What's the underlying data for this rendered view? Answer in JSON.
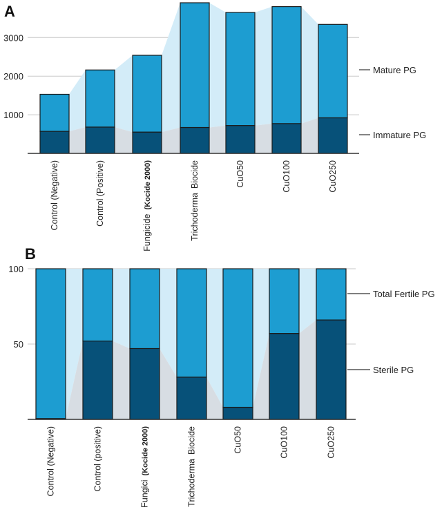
{
  "colors": {
    "top_segment": "#1d9dd1",
    "bottom_segment": "#075179",
    "ribbon_top": "#d3ecf8",
    "ribbon_bottom": "#d7dde3",
    "grid": "#c8c8c8",
    "axis": "#333333"
  },
  "chart_data": [
    {
      "panel": "A",
      "type": "bar",
      "stacked": true,
      "categories": [
        [
          "Control (Negative)"
        ],
        [
          "Control (Positive)"
        ],
        [
          "Fungicide",
          "(Kocide 2000)"
        ],
        [
          "Trichoderma",
          "Biocide"
        ],
        [
          "CuO50"
        ],
        [
          "CuO100"
        ],
        [
          "CuO250"
        ]
      ],
      "series": [
        {
          "name": "Immature PG",
          "values": [
            570,
            680,
            550,
            670,
            720,
            770,
            920
          ]
        },
        {
          "name": "Mature PG",
          "values": [
            960,
            1480,
            1990,
            3230,
            2930,
            3030,
            2420
          ]
        }
      ],
      "totals": [
        1530,
        2160,
        2540,
        3900,
        3650,
        3800,
        3340
      ],
      "ylim": [
        0,
        3900
      ],
      "yticks": [
        "1000",
        "2000",
        "3000"
      ],
      "legend": [
        "Mature PG",
        "Immature PG"
      ]
    },
    {
      "panel": "B",
      "type": "bar",
      "stacked": true,
      "categories": [
        [
          "Control (Negative)"
        ],
        [
          "Control (positive)"
        ],
        [
          "Fungici",
          "(Kocide 2000)"
        ],
        [
          "Trichoderma",
          "Biocide"
        ],
        [
          "CuO50"
        ],
        [
          "CuO100"
        ],
        [
          "CuO250"
        ]
      ],
      "series": [
        {
          "name": "Sterile PG",
          "values": [
            0.5,
            52,
            47,
            28,
            8,
            57,
            66
          ]
        },
        {
          "name": "Total Fertile PG",
          "values": [
            99.5,
            48,
            53,
            72,
            92,
            43,
            34
          ]
        }
      ],
      "ylim": [
        0,
        100
      ],
      "yticks": [
        "50",
        "100"
      ],
      "legend": [
        "Total Fertile PG",
        "Sterile PG"
      ]
    }
  ]
}
